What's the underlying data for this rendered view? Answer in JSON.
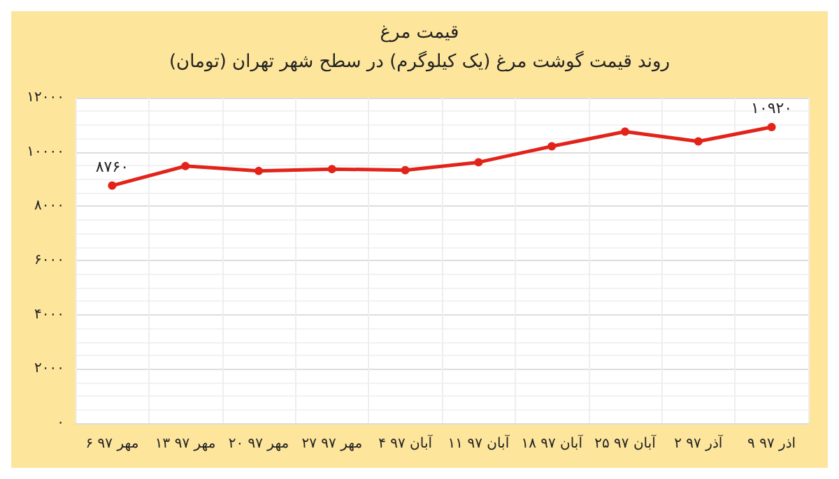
{
  "chart_data": {
    "type": "line",
    "title": "قیمت مرغ",
    "subtitle": "روند قیمت گوشت مرغ (یک کیلوگرم) در سطح شهر تهران (تومان)",
    "categories": [
      "۶ مهر ۹۷",
      "۱۳ مهر ۹۷",
      "۲۰ مهر ۹۷",
      "۲۷ مهر ۹۷",
      "۴ آبان ۹۷",
      "۱۱ آبان ۹۷",
      "۱۸ آبان ۹۷",
      "۲۵ آبان ۹۷",
      "۲ آذر ۹۷",
      "۹ اذر ۹۷"
    ],
    "series": [
      {
        "color": "#e2231a",
        "values": [
          8760,
          9480,
          9300,
          9370,
          9330,
          9620,
          10210,
          10750,
          10390,
          10920
        ],
        "value_labels": [
          "۸۷۶۰",
          null,
          null,
          null,
          null,
          null,
          null,
          null,
          null,
          "۱۰۹۲۰"
        ]
      }
    ],
    "ylim": [
      0,
      12000
    ],
    "yticks": [
      {
        "value": 0,
        "label": "۰"
      },
      {
        "value": 2000,
        "label": "۲۰۰۰"
      },
      {
        "value": 4000,
        "label": "۴۰۰۰"
      },
      {
        "value": 6000,
        "label": "۶۰۰۰"
      },
      {
        "value": 8000,
        "label": "۸۰۰۰"
      },
      {
        "value": 10000,
        "label": "۱۰۰۰۰"
      },
      {
        "value": 12000,
        "label": "۱۲۰۰۰"
      }
    ],
    "grid": true,
    "marker": "circle",
    "line_style": "solid"
  }
}
